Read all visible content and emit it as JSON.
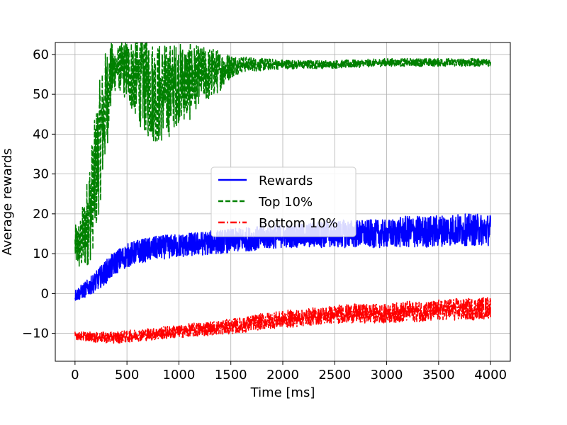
{
  "chart_data": {
    "type": "line",
    "title": "",
    "xlabel": "Time [ms]",
    "ylabel": "Average rewards",
    "xlim": [
      -190,
      4190
    ],
    "ylim": [
      -17,
      63
    ],
    "xticks": [
      0,
      500,
      1000,
      1500,
      2000,
      2500,
      3000,
      3500,
      4000
    ],
    "yticks": [
      -10,
      0,
      10,
      20,
      30,
      40,
      50,
      60
    ],
    "xtick_labels": [
      "0",
      "500",
      "1000",
      "1500",
      "2000",
      "2500",
      "3000",
      "3500",
      "4000"
    ],
    "ytick_labels": [
      "−10",
      "0",
      "10",
      "20",
      "30",
      "40",
      "50",
      "60"
    ],
    "grid": true,
    "legend": {
      "placement": "center"
    },
    "series": [
      {
        "name": "Rewards",
        "color": "#0000ff",
        "style": "solid",
        "x": [
          0,
          100,
          200,
          300,
          400,
          500,
          600,
          700,
          800,
          1000,
          1200,
          1400,
          1600,
          1800,
          2000,
          2200,
          2400,
          2600,
          2800,
          3000,
          3200,
          3400,
          3600,
          3800,
          4000
        ],
        "center": [
          -0.5,
          1,
          3,
          5.5,
          8,
          9.5,
          10.5,
          11,
          11.5,
          12,
          12.5,
          13,
          13.5,
          14,
          14.5,
          14.5,
          15,
          15,
          15,
          15,
          15.5,
          15.5,
          16,
          16,
          16
        ],
        "spread": [
          1.5,
          2,
          2.5,
          3,
          3,
          3,
          3,
          3,
          3,
          3,
          3,
          3,
          3,
          3,
          3,
          3,
          3.5,
          3.5,
          3.5,
          3.5,
          4,
          4,
          4,
          4,
          4
        ]
      },
      {
        "name": "Top 10%",
        "color": "#008000",
        "style": "dashed",
        "x": [
          0,
          50,
          100,
          150,
          200,
          250,
          300,
          350,
          400,
          500,
          600,
          700,
          800,
          900,
          1000,
          1100,
          1200,
          1300,
          1400,
          1500,
          1600,
          2000,
          2500,
          3000,
          3500,
          4000
        ],
        "center": [
          12,
          12,
          16,
          22,
          30,
          40,
          48,
          55,
          57,
          56,
          54,
          52,
          50,
          51,
          53,
          53,
          55,
          55,
          56,
          57,
          57.5,
          57.5,
          57.5,
          58,
          58,
          58
        ],
        "spread": [
          5,
          7,
          10,
          14,
          16,
          16,
          14,
          8,
          5,
          8,
          11,
          13,
          13,
          12,
          10,
          10,
          7,
          7,
          5,
          3,
          2,
          1.2,
          1,
          1,
          1,
          1
        ]
      },
      {
        "name": "Bottom 10%",
        "color": "#ff0000",
        "style": "dashdot",
        "x": [
          0,
          200,
          400,
          600,
          800,
          1000,
          1200,
          1400,
          1600,
          1800,
          2000,
          2200,
          2400,
          2600,
          2800,
          3000,
          3200,
          3400,
          3600,
          3800,
          4000
        ],
        "center": [
          -10.5,
          -11,
          -11,
          -10.5,
          -10,
          -9.5,
          -9,
          -8.5,
          -8,
          -7,
          -6.5,
          -6,
          -5.5,
          -5,
          -5,
          -5,
          -4.5,
          -4.5,
          -4,
          -4,
          -3.5
        ],
        "spread": [
          1,
          1.3,
          1.5,
          1.5,
          1.6,
          1.6,
          1.8,
          1.8,
          2,
          2,
          2.2,
          2.2,
          2.2,
          2.4,
          2.4,
          2.4,
          2.6,
          2.6,
          2.8,
          2.8,
          2.8
        ]
      }
    ]
  }
}
